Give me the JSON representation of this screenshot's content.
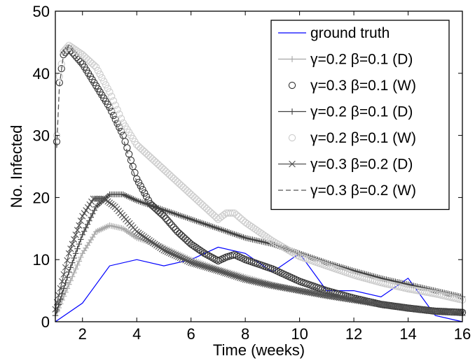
{
  "chart_data": {
    "type": "line",
    "title": "",
    "xlabel": "Time (weeks)",
    "ylabel": "No. Infected",
    "xlim": [
      1,
      16
    ],
    "ylim": [
      0,
      50
    ],
    "xticks": [
      2,
      4,
      6,
      8,
      10,
      12,
      14,
      16
    ],
    "yticks": [
      0,
      10,
      20,
      30,
      40,
      50
    ],
    "grid": false,
    "legend_position": "top-right",
    "series": [
      {
        "name": "ground truth",
        "color": "#0000ff",
        "style": "solid",
        "marker": "none",
        "points": [
          [
            1,
            0
          ],
          [
            2,
            3
          ],
          [
            3,
            9
          ],
          [
            4,
            10
          ],
          [
            5,
            9
          ],
          [
            6,
            10
          ],
          [
            7,
            12
          ],
          [
            8,
            11
          ],
          [
            9,
            8
          ],
          [
            10,
            11
          ],
          [
            11,
            5
          ],
          [
            12,
            5
          ],
          [
            13,
            4
          ],
          [
            14,
            7
          ],
          [
            15,
            1
          ],
          [
            16,
            0
          ]
        ]
      },
      {
        "name": "γ=0.2 β=0.1 (D)",
        "color": "#a6a6a6",
        "style": "solid",
        "marker": "plus",
        "points": [
          [
            1,
            1
          ],
          [
            1.5,
            6
          ],
          [
            2,
            11
          ],
          [
            2.5,
            14.5
          ],
          [
            3,
            15.5
          ],
          [
            3.5,
            15
          ],
          [
            4,
            13.5
          ],
          [
            5,
            12
          ],
          [
            6,
            10
          ],
          [
            7,
            8.5
          ],
          [
            8,
            7.2
          ],
          [
            9,
            6
          ],
          [
            10,
            5
          ],
          [
            11,
            4.2
          ],
          [
            12,
            3.5
          ],
          [
            13,
            2.8
          ],
          [
            14,
            2.3
          ],
          [
            15,
            1.8
          ],
          [
            16,
            1.5
          ]
        ]
      },
      {
        "name": "γ=0.3 β=0.1 (W)",
        "color": "#333333",
        "style": "none",
        "marker": "circle",
        "points": [
          [
            1.05,
            29
          ],
          [
            1.15,
            38.5
          ],
          [
            1.3,
            43
          ],
          [
            1.5,
            44
          ],
          [
            2,
            41.5
          ],
          [
            2.5,
            38
          ],
          [
            3,
            34.5
          ],
          [
            3.5,
            30
          ],
          [
            4,
            23
          ],
          [
            4.5,
            19
          ],
          [
            5,
            17
          ],
          [
            5.5,
            14.5
          ],
          [
            6,
            12.5
          ],
          [
            6.5,
            11
          ],
          [
            7,
            9.8
          ],
          [
            7.3,
            10.4
          ],
          [
            7.6,
            10.8
          ],
          [
            8,
            10
          ],
          [
            9,
            8.5
          ],
          [
            10,
            6.5
          ],
          [
            11,
            5
          ],
          [
            12,
            3.8
          ],
          [
            13,
            2.8
          ],
          [
            14,
            2.2
          ],
          [
            15,
            1.7
          ],
          [
            16,
            1.5
          ]
        ]
      },
      {
        "name": "γ=0.2 β=0.1 (D)",
        "color": "#404040",
        "style": "solid",
        "marker": "plus",
        "points": [
          [
            1,
            1
          ],
          [
            1.5,
            8
          ],
          [
            2,
            14
          ],
          [
            2.5,
            18.5
          ],
          [
            3,
            20.5
          ],
          [
            3.5,
            20.5
          ],
          [
            4,
            19.5
          ],
          [
            5,
            18
          ],
          [
            6,
            16.5
          ],
          [
            7,
            15
          ],
          [
            8,
            13.5
          ],
          [
            9,
            12.5
          ],
          [
            10,
            11
          ],
          [
            11,
            9.5
          ],
          [
            12,
            8.2
          ],
          [
            13,
            7
          ],
          [
            14,
            6
          ],
          [
            15,
            5
          ],
          [
            16,
            4
          ]
        ]
      },
      {
        "name": "γ=0.2 β=0.1 (W)",
        "color": "#cccccc",
        "style": "none",
        "marker": "circle",
        "points": [
          [
            1.05,
            30
          ],
          [
            1.15,
            39.5
          ],
          [
            1.3,
            43.5
          ],
          [
            1.5,
            44.5
          ],
          [
            2,
            43
          ],
          [
            2.5,
            41
          ],
          [
            3,
            37
          ],
          [
            3.5,
            32
          ],
          [
            4,
            28.5
          ],
          [
            4.5,
            26.5
          ],
          [
            5,
            24.5
          ],
          [
            5.5,
            22.5
          ],
          [
            6,
            20.5
          ],
          [
            6.5,
            18.5
          ],
          [
            7,
            16.5
          ],
          [
            7.3,
            17.5
          ],
          [
            7.6,
            17.5
          ],
          [
            8,
            16
          ],
          [
            9,
            13
          ],
          [
            10,
            10.5
          ],
          [
            11,
            9
          ],
          [
            12,
            7.5
          ],
          [
            13,
            6.3
          ],
          [
            14,
            5.3
          ],
          [
            15,
            4.5
          ],
          [
            16,
            3.5
          ]
        ]
      },
      {
        "name": "γ=0.3 β=0.2 (D)",
        "color": "#505050",
        "style": "solid",
        "marker": "x",
        "points": [
          [
            1,
            2
          ],
          [
            1.5,
            11
          ],
          [
            2,
            17
          ],
          [
            2.4,
            19.8
          ],
          [
            2.8,
            19.8
          ],
          [
            3.2,
            18.5
          ],
          [
            3.6,
            16.5
          ],
          [
            4,
            14.5
          ],
          [
            5,
            11.5
          ],
          [
            6,
            9.5
          ],
          [
            7,
            8.2
          ],
          [
            8,
            6.8
          ],
          [
            9,
            5.8
          ],
          [
            10,
            5
          ],
          [
            11,
            4.2
          ],
          [
            12,
            3.5
          ],
          [
            13,
            2.8
          ],
          [
            14,
            2.2
          ],
          [
            15,
            1.7
          ],
          [
            16,
            1.4
          ]
        ]
      },
      {
        "name": "γ=0.3 β=0.2 (W)",
        "color": "#555555",
        "style": "dashed",
        "marker": "none",
        "points": [
          [
            1.05,
            28
          ],
          [
            1.15,
            38
          ],
          [
            1.3,
            43
          ],
          [
            1.5,
            44.5
          ],
          [
            2,
            41
          ],
          [
            2.5,
            37.5
          ],
          [
            3,
            34
          ],
          [
            3.5,
            29.5
          ],
          [
            4,
            22.5
          ],
          [
            4.5,
            18.5
          ],
          [
            5,
            16.5
          ],
          [
            5.5,
            14
          ],
          [
            6,
            12
          ],
          [
            6.5,
            10.7
          ],
          [
            7,
            9.6
          ],
          [
            7.3,
            10.2
          ],
          [
            7.6,
            10.6
          ],
          [
            8,
            9.8
          ],
          [
            9,
            8.3
          ],
          [
            10,
            6.3
          ],
          [
            11,
            4.9
          ],
          [
            12,
            3.7
          ],
          [
            13,
            2.8
          ],
          [
            14,
            2.2
          ],
          [
            15,
            1.7
          ],
          [
            16,
            1.5
          ]
        ]
      }
    ]
  }
}
